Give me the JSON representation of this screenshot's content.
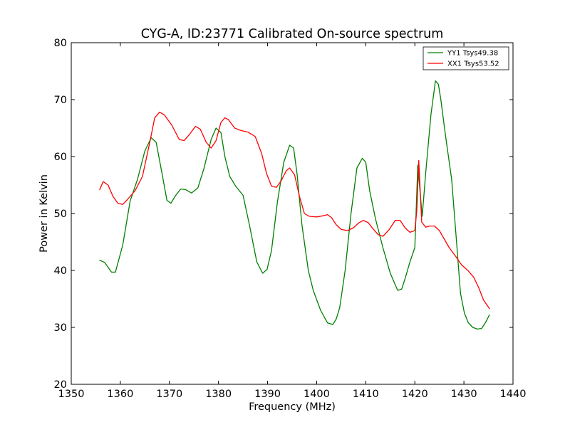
{
  "chart_data": {
    "type": "line",
    "title": "CYG-A, ID:23771 Calibrated On-source spectrum",
    "xlabel": "Frequency (MHz)",
    "ylabel": "Power in Kelvin",
    "xlim": [
      1350,
      1440
    ],
    "ylim": [
      20,
      80
    ],
    "xticks": [
      1350,
      1360,
      1370,
      1380,
      1390,
      1400,
      1410,
      1420,
      1430,
      1440
    ],
    "yticks": [
      20,
      30,
      40,
      50,
      60,
      70,
      80
    ],
    "grid": false,
    "legend_position": "top-right",
    "series": [
      {
        "name": "YY1 Tsys49.38",
        "color": "#008000",
        "x": [
          1355.8,
          1356.8,
          1358.2,
          1359.0,
          1360.5,
          1362.0,
          1363.5,
          1365.0,
          1366.3,
          1367.3,
          1368.5,
          1369.5,
          1370.3,
          1371.3,
          1372.3,
          1373.3,
          1374.5,
          1375.8,
          1377.0,
          1378.5,
          1379.5,
          1380.5,
          1381.3,
          1382.3,
          1383.5,
          1385.0,
          1386.3,
          1387.8,
          1389.0,
          1389.9,
          1390.8,
          1392.0,
          1393.3,
          1394.5,
          1395.3,
          1396.0,
          1397.0,
          1398.3,
          1399.3,
          1400.8,
          1402.2,
          1403.3,
          1404.0,
          1404.7,
          1405.8,
          1407.0,
          1408.2,
          1409.3,
          1410.0,
          1410.8,
          1412.0,
          1413.5,
          1415.0,
          1416.5,
          1417.3,
          1418.0,
          1419.0,
          1420.0,
          1420.6,
          1421.5,
          1422.3,
          1423.3,
          1424.2,
          1424.8,
          1425.3,
          1426.2,
          1427.5,
          1428.5,
          1429.3,
          1430.1,
          1430.9,
          1431.8,
          1432.7,
          1433.6,
          1434.5,
          1435.2
        ],
        "y": [
          41.8,
          41.4,
          39.7,
          39.7,
          44.5,
          52.2,
          56.0,
          61.0,
          63.3,
          62.5,
          57.0,
          52.3,
          51.8,
          53.2,
          54.3,
          54.2,
          53.6,
          54.5,
          57.8,
          63.0,
          65.0,
          64.2,
          60.0,
          56.5,
          54.8,
          53.2,
          48.0,
          41.5,
          39.5,
          40.2,
          43.5,
          52.0,
          59.0,
          62.0,
          61.5,
          57.0,
          48.0,
          40.0,
          36.5,
          33.0,
          30.8,
          30.5,
          31.5,
          33.5,
          40.0,
          50.0,
          58.0,
          59.7,
          59.0,
          54.0,
          49.0,
          44.0,
          39.5,
          36.5,
          36.7,
          38.5,
          41.5,
          44.0,
          58.5,
          49.5,
          58.0,
          67.5,
          73.3,
          72.7,
          70.0,
          64.0,
          56.0,
          45.0,
          36.0,
          32.5,
          30.8,
          30.0,
          29.7,
          29.8,
          31.0,
          32.2
        ]
      },
      {
        "name": "XX1 Tsys53.52",
        "color": "#ff0000",
        "x": [
          1355.8,
          1356.5,
          1357.5,
          1358.5,
          1359.5,
          1360.5,
          1361.5,
          1363.0,
          1364.5,
          1366.0,
          1367.0,
          1368.0,
          1369.0,
          1370.5,
          1372.0,
          1373.0,
          1374.0,
          1375.3,
          1376.3,
          1377.5,
          1378.5,
          1379.5,
          1380.5,
          1381.3,
          1382.0,
          1383.3,
          1384.5,
          1386.0,
          1387.5,
          1388.8,
          1389.8,
          1390.8,
          1391.8,
          1392.8,
          1393.8,
          1394.5,
          1395.5,
          1396.5,
          1397.5,
          1398.5,
          1400.0,
          1401.3,
          1402.2,
          1403.0,
          1404.0,
          1405.0,
          1406.3,
          1407.5,
          1408.5,
          1409.5,
          1410.5,
          1411.5,
          1412.5,
          1413.5,
          1414.8,
          1416.0,
          1417.0,
          1418.0,
          1419.0,
          1420.0,
          1420.4,
          1420.8,
          1421.4,
          1422.2,
          1423.0,
          1424.0,
          1425.0,
          1426.0,
          1427.0,
          1428.3,
          1429.5,
          1430.8,
          1432.0,
          1433.0,
          1434.0,
          1435.2
        ],
        "y": [
          54.2,
          55.6,
          55.0,
          53.0,
          51.8,
          51.6,
          52.5,
          54.0,
          56.5,
          62.5,
          66.8,
          67.8,
          67.3,
          65.5,
          63.0,
          62.8,
          63.8,
          65.3,
          64.8,
          62.5,
          61.5,
          62.8,
          66.0,
          66.8,
          66.5,
          65.0,
          64.6,
          64.3,
          63.5,
          60.5,
          57.0,
          54.8,
          54.6,
          55.8,
          57.5,
          58.0,
          56.8,
          53.0,
          50.0,
          49.5,
          49.4,
          49.6,
          49.8,
          49.3,
          48.0,
          47.2,
          47.0,
          47.5,
          48.3,
          48.8,
          48.4,
          47.3,
          46.3,
          46.0,
          47.2,
          48.8,
          48.8,
          47.5,
          46.7,
          47.0,
          50.5,
          59.3,
          48.5,
          47.6,
          47.8,
          47.8,
          47.0,
          45.5,
          44.0,
          42.5,
          41.0,
          40.0,
          38.8,
          37.0,
          34.8,
          33.3
        ]
      }
    ]
  }
}
